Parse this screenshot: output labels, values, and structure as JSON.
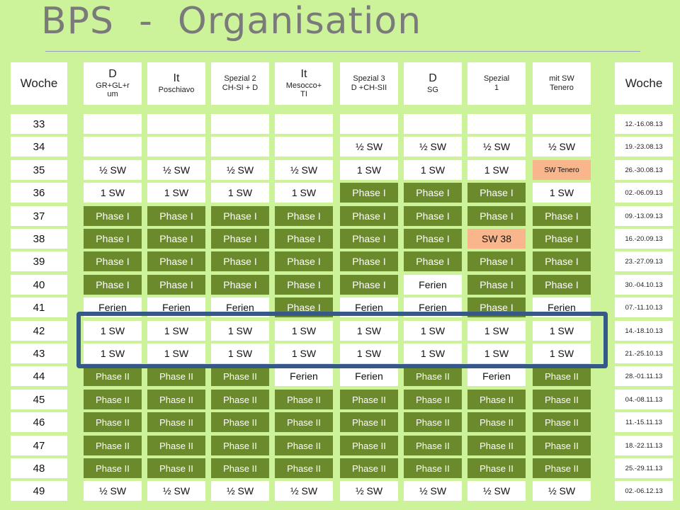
{
  "title": "BPS  -  Organisation",
  "columns": [
    {
      "line1": "D",
      "line2": "GR+GL+r",
      "line3": "um"
    },
    {
      "line1": "It",
      "line2": "Poschiavo",
      "line3": ""
    },
    {
      "line1": "Spezial 2",
      "line2": "CH-SI  + D",
      "line3": ""
    },
    {
      "line1": "It",
      "line2": "Mesocco+",
      "line3": "TI"
    },
    {
      "line1": "Spezial 3",
      "line2": "D +CH-SII",
      "line3": ""
    },
    {
      "line1": "D",
      "line2": "SG",
      "line3": ""
    },
    {
      "line1": "Spezial",
      "line2": "1",
      "line3": ""
    },
    {
      "line1": "mit SW",
      "line2": "Tenero",
      "line3": ""
    }
  ],
  "woche_label_left": "Woche",
  "woche_label_right": "Woche",
  "rows": [
    {
      "week": "33",
      "dates": "12.-16.08.13",
      "cells": [
        "",
        "",
        "",
        "",
        "",
        "",
        "",
        ""
      ]
    },
    {
      "week": "34",
      "dates": "19.-23.08.13",
      "cells": [
        "",
        "",
        "",
        "",
        "½ SW",
        "½ SW",
        "½ SW",
        "½ SW"
      ]
    },
    {
      "week": "35",
      "dates": "26.-30.08.13",
      "cells": [
        "½ SW",
        "½ SW",
        "½ SW",
        "½ SW",
        "1 SW",
        "1 SW",
        "1 SW",
        "SW Tenero"
      ]
    },
    {
      "week": "36",
      "dates": "02.-06.09.13",
      "cells": [
        "1 SW",
        "1 SW",
        "1 SW",
        "1 SW",
        "Phase I",
        "Phase I",
        "Phase I",
        "1 SW"
      ]
    },
    {
      "week": "37",
      "dates": "09.-13.09.13",
      "cells": [
        "Phase I",
        "Phase I",
        "Phase I",
        "Phase I",
        "Phase I",
        "Phase I",
        "Phase I",
        "Phase I"
      ]
    },
    {
      "week": "38",
      "dates": "16.-20.09.13",
      "cells": [
        "Phase I",
        "Phase I",
        "Phase I",
        "Phase I",
        "Phase I",
        "Phase I",
        "SW 38",
        "Phase I"
      ]
    },
    {
      "week": "39",
      "dates": "23.-27.09.13",
      "cells": [
        "Phase I",
        "Phase I",
        "Phase I",
        "Phase I",
        "Phase I",
        "Phase I",
        "Phase I",
        "Phase I"
      ]
    },
    {
      "week": "40",
      "dates": "30.-04.10.13",
      "cells": [
        "Phase I",
        "Phase I",
        "Phase I",
        "Phase I",
        "Phase I",
        "Ferien",
        "Phase I",
        "Phase I"
      ]
    },
    {
      "week": "41",
      "dates": "07.-11.10.13",
      "cells": [
        "Ferien",
        "Ferien",
        "Ferien",
        "Phase I",
        "Ferien",
        "Ferien",
        "Phase I",
        "Ferien"
      ]
    },
    {
      "week": "42",
      "dates": "14.-18.10.13",
      "cells": [
        "1 SW",
        "1 SW",
        "1 SW",
        "1 SW",
        "1 SW",
        "1 SW",
        "1 SW",
        "1 SW"
      ]
    },
    {
      "week": "43",
      "dates": "21.-25.10.13",
      "cells": [
        "1 SW",
        "1 SW",
        "1 SW",
        "1 SW",
        "1 SW",
        "1 SW",
        "1 SW",
        "1 SW"
      ]
    },
    {
      "week": "44",
      "dates": "28.-01.11.13",
      "cells": [
        "Phase II",
        "Phase II",
        "Phase II",
        "Ferien",
        "Ferien",
        "Phase II",
        "Ferien",
        "Phase II"
      ]
    },
    {
      "week": "45",
      "dates": "04.-08.11.13",
      "cells": [
        "Phase II",
        "Phase II",
        "Phase II",
        "Phase II",
        "Phase II",
        "Phase II",
        "Phase II",
        "Phase II"
      ]
    },
    {
      "week": "46",
      "dates": "11.-15.11.13",
      "cells": [
        "Phase II",
        "Phase II",
        "Phase II",
        "Phase II",
        "Phase II",
        "Phase II",
        "Phase II",
        "Phase II"
      ]
    },
    {
      "week": "47",
      "dates": "18.-22.11.13",
      "cells": [
        "Phase II",
        "Phase II",
        "Phase II",
        "Phase II",
        "Phase II",
        "Phase II",
        "Phase II",
        "Phase II"
      ]
    },
    {
      "week": "48",
      "dates": "25.-29.11.13",
      "cells": [
        "Phase II",
        "Phase II",
        "Phase II",
        "Phase II",
        "Phase II",
        "Phase II",
        "Phase II",
        "Phase II"
      ]
    },
    {
      "week": "49",
      "dates": "02.-06.12.13",
      "cells": [
        "½ SW",
        "½ SW",
        "½ SW",
        "½ SW",
        "½ SW",
        "½ SW",
        "½ SW",
        "½ SW"
      ]
    }
  ],
  "colors": {
    "background": "#ccf29a",
    "phase_cell": "#6b8a2c",
    "white_cell": "#ffffff",
    "sw38_cell": "#f9b68c",
    "highlight_border": "#355a8a"
  }
}
